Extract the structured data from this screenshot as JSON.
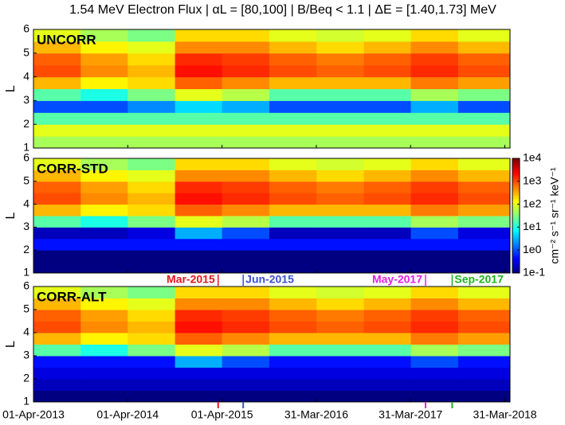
{
  "chart_data": {
    "type": "heatmap",
    "title": "1.54 MeV Electron Flux | αL = [80,100] | B/Beq < 1.1 | ΔE = [1.40,1.73] MeV",
    "ylabel": "L",
    "xlim": [
      "2013-04-01",
      "2018-04-20"
    ],
    "xticks": [
      {
        "value": "2013-04-01",
        "label": "01-Apr-2013"
      },
      {
        "value": "2014-04-01",
        "label": "01-Apr-2014"
      },
      {
        "value": "2015-04-01",
        "label": "01-Apr-2015"
      },
      {
        "value": "2016-03-31",
        "label": "31-Mar-2016"
      },
      {
        "value": "2017-03-31",
        "label": "31-Mar-2017"
      },
      {
        "value": "2018-03-31",
        "label": "31-Mar-2018"
      }
    ],
    "x_edges": [
      "2013-04-01",
      "2013-10-01",
      "2014-04-01",
      "2014-10-01",
      "2015-04-01",
      "2015-10-01",
      "2016-04-01",
      "2016-10-01",
      "2017-04-01",
      "2017-10-01",
      "2018-04-20"
    ],
    "ylim": [
      1,
      6
    ],
    "yticks": [
      1,
      2,
      3,
      4,
      5,
      6
    ],
    "y_edges": [
      1,
      1.5,
      2,
      2.5,
      3,
      3.5,
      4,
      4.5,
      5,
      5.5,
      6
    ],
    "colormap": "jet",
    "log_color": true,
    "colorbar": {
      "label": "cm⁻² s⁻¹ sr⁻¹ keV⁻¹",
      "clim": [
        0.1,
        10000
      ],
      "ticks": [
        {
          "value": 10000,
          "label": "1e4"
        },
        {
          "value": 1000,
          "label": "1e3"
        },
        {
          "value": 100,
          "label": "1e2"
        },
        {
          "value": 10,
          "label": "1e1"
        },
        {
          "value": 1,
          "label": "1e0"
        },
        {
          "value": 0.1,
          "label": "1e-1"
        }
      ]
    },
    "events": [
      {
        "label": "Mar-2015",
        "date": "2015-03-17",
        "color": "#e8141e"
      },
      {
        "label": "Jun-2015",
        "date": "2015-06-22",
        "color": "#3c50d2"
      },
      {
        "label": "May-2017",
        "date": "2017-05-28",
        "color": "#e61ee6"
      },
      {
        "label": "Sep-2017",
        "date": "2017-09-08",
        "color": "#1eb41e"
      }
    ],
    "panels": [
      {
        "name": "UNCORR",
        "z": [
          [
            50,
            50,
            50,
            50,
            50,
            50,
            50,
            50,
            50,
            50
          ],
          [
            100,
            100,
            100,
            100,
            100,
            100,
            100,
            100,
            100,
            100
          ],
          [
            20,
            20,
            20,
            20,
            20,
            20,
            20,
            20,
            20,
            20
          ],
          [
            1,
            1,
            2,
            5,
            3,
            1,
            1,
            1,
            3,
            1
          ],
          [
            20,
            10,
            30,
            100,
            60,
            20,
            20,
            20,
            50,
            30
          ],
          [
            300,
            150,
            200,
            800,
            500,
            300,
            300,
            300,
            600,
            400
          ],
          [
            1000,
            500,
            300,
            2000,
            1500,
            1000,
            800,
            1000,
            1500,
            1000
          ],
          [
            800,
            400,
            200,
            1500,
            1200,
            800,
            600,
            800,
            1200,
            800
          ],
          [
            300,
            150,
            100,
            500,
            500,
            300,
            200,
            300,
            500,
            300
          ],
          [
            100,
            50,
            30,
            200,
            200,
            100,
            80,
            100,
            200,
            100
          ]
        ]
      },
      {
        "name": "CORR-STD",
        "z": [
          [
            0.1,
            0.1,
            0.1,
            0.1,
            0.1,
            0.1,
            0.1,
            0.1,
            0.1,
            0.1
          ],
          [
            0.1,
            0.1,
            0.1,
            0.1,
            0.1,
            0.1,
            0.1,
            0.1,
            0.1,
            0.1
          ],
          [
            0.5,
            0.5,
            0.5,
            0.5,
            0.5,
            0.5,
            0.5,
            0.5,
            0.5,
            0.5
          ],
          [
            0.2,
            0.2,
            0.3,
            3,
            1,
            0.2,
            0.2,
            0.2,
            1,
            0.3
          ],
          [
            20,
            10,
            30,
            100,
            60,
            20,
            20,
            20,
            50,
            30
          ],
          [
            300,
            150,
            200,
            800,
            500,
            300,
            300,
            300,
            600,
            400
          ],
          [
            1000,
            500,
            300,
            2000,
            1500,
            1000,
            800,
            1000,
            1500,
            1000
          ],
          [
            800,
            400,
            200,
            1500,
            1200,
            800,
            600,
            800,
            1200,
            800
          ],
          [
            300,
            150,
            100,
            500,
            500,
            300,
            200,
            300,
            500,
            300
          ],
          [
            100,
            50,
            30,
            200,
            200,
            100,
            80,
            100,
            200,
            100
          ]
        ]
      },
      {
        "name": "CORR-ALT",
        "z": [
          [
            0.1,
            0.1,
            0.1,
            0.1,
            0.1,
            0.1,
            0.1,
            0.1,
            0.1,
            0.1
          ],
          [
            0.2,
            0.2,
            0.2,
            0.2,
            0.2,
            0.2,
            0.2,
            0.2,
            0.2,
            0.2
          ],
          [
            0.3,
            0.3,
            0.3,
            0.3,
            0.3,
            0.3,
            0.3,
            0.3,
            0.3,
            0.3
          ],
          [
            0.5,
            0.5,
            0.5,
            3,
            1,
            0.5,
            0.5,
            0.5,
            1,
            0.5
          ],
          [
            20,
            10,
            30,
            100,
            60,
            20,
            20,
            20,
            50,
            30
          ],
          [
            300,
            150,
            200,
            800,
            500,
            300,
            300,
            300,
            600,
            400
          ],
          [
            1000,
            500,
            300,
            2000,
            1500,
            1000,
            800,
            1000,
            1500,
            1000
          ],
          [
            800,
            400,
            200,
            1500,
            1200,
            800,
            600,
            800,
            1200,
            800
          ],
          [
            300,
            150,
            100,
            500,
            500,
            300,
            200,
            300,
            500,
            300
          ],
          [
            100,
            50,
            30,
            200,
            200,
            100,
            80,
            100,
            200,
            100
          ]
        ]
      }
    ]
  }
}
